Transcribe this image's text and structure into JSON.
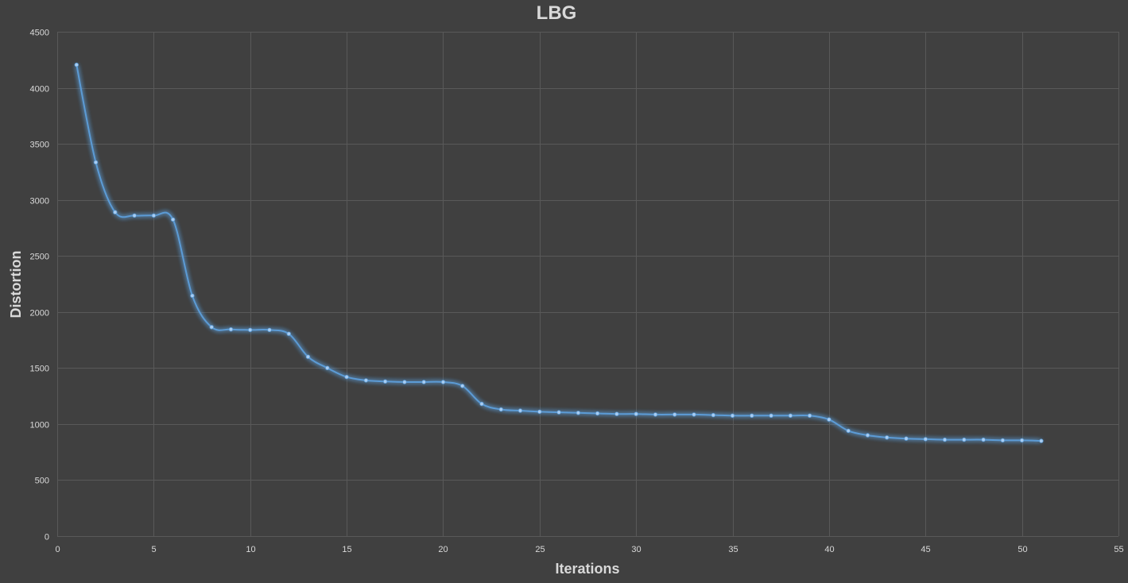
{
  "chart_data": {
    "type": "line",
    "title": "LBG",
    "xlabel": "Iterations",
    "ylabel": "Distortion",
    "xlim": [
      0,
      55
    ],
    "ylim": [
      0,
      4500
    ],
    "x_ticks": [
      0,
      5,
      10,
      15,
      20,
      25,
      30,
      35,
      40,
      45,
      50,
      55
    ],
    "y_ticks": [
      0,
      500,
      1000,
      1500,
      2000,
      2500,
      3000,
      3500,
      4000,
      4500
    ],
    "grid": true,
    "legend": "none",
    "smooth": true,
    "markers": true,
    "colors": {
      "background": "#404040",
      "grid": "#595959",
      "text": "#d9d9d9",
      "line": "#5b9bd5",
      "marker": "#a9cdf2"
    },
    "series": [
      {
        "x": [
          1,
          2,
          3,
          4,
          5,
          6,
          7,
          8,
          9,
          10,
          11,
          12,
          13,
          14,
          15,
          16,
          17,
          18,
          19,
          20,
          21,
          22,
          23,
          24,
          25,
          26,
          27,
          28,
          29,
          30,
          31,
          32,
          33,
          34,
          35,
          36,
          37,
          38,
          39,
          40,
          41,
          42,
          43,
          44,
          45,
          46,
          47,
          48,
          49,
          50,
          51
        ],
        "y": [
          4205,
          3335,
          2890,
          2860,
          2860,
          2825,
          2145,
          1865,
          1845,
          1840,
          1840,
          1805,
          1600,
          1500,
          1420,
          1390,
          1380,
          1375,
          1375,
          1375,
          1340,
          1180,
          1130,
          1120,
          1110,
          1105,
          1100,
          1095,
          1090,
          1090,
          1085,
          1085,
          1085,
          1080,
          1075,
          1075,
          1075,
          1075,
          1075,
          1040,
          940,
          900,
          880,
          870,
          865,
          860,
          860,
          860,
          855,
          855,
          850
        ]
      }
    ]
  }
}
